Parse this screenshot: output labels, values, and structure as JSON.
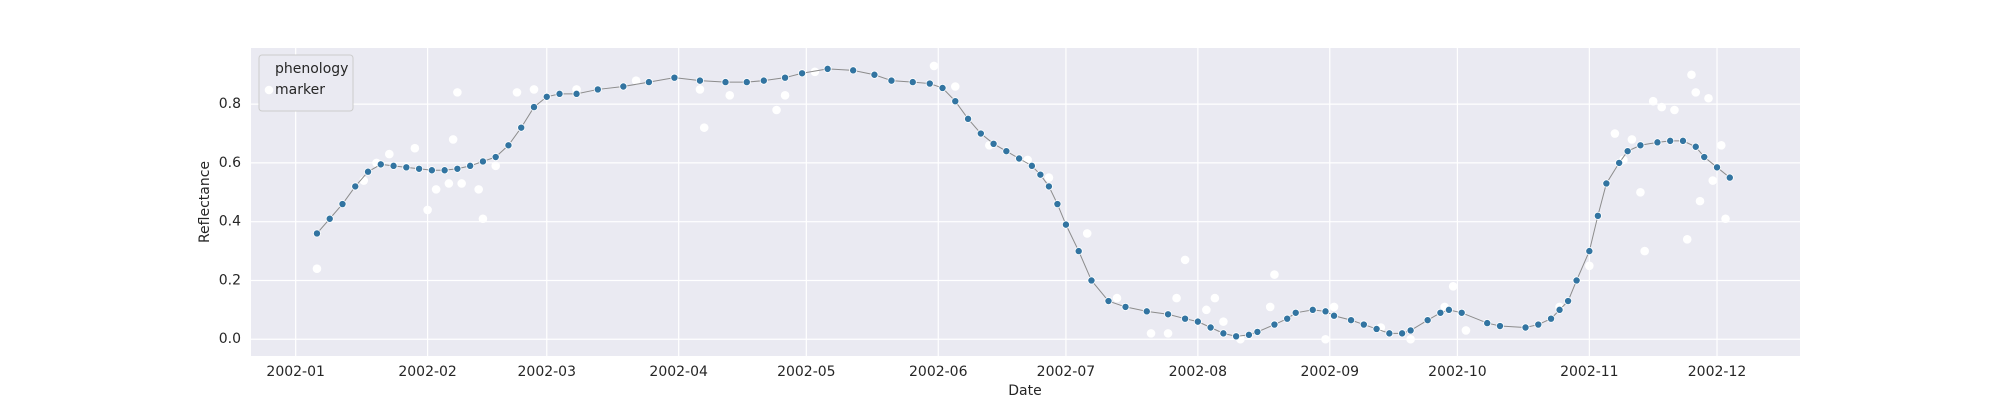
{
  "chart_data": {
    "type": "line",
    "xlabel": "Date",
    "ylabel": "Reflectance",
    "xlim": [
      -10.5,
      353.5
    ],
    "ylim": [
      -0.057,
      0.991
    ],
    "xticks": [
      {
        "value": 0,
        "label": "2002-01"
      },
      {
        "value": 31,
        "label": "2002-02"
      },
      {
        "value": 59,
        "label": "2002-03"
      },
      {
        "value": 90,
        "label": "2002-04"
      },
      {
        "value": 120,
        "label": "2002-05"
      },
      {
        "value": 151,
        "label": "2002-06"
      },
      {
        "value": 181,
        "label": "2002-07"
      },
      {
        "value": 212,
        "label": "2002-08"
      },
      {
        "value": 243,
        "label": "2002-09"
      },
      {
        "value": 273,
        "label": "2002-10"
      },
      {
        "value": 304,
        "label": "2002-11"
      },
      {
        "value": 334,
        "label": "2002-12"
      }
    ],
    "yticks": [
      {
        "value": 0,
        "label": "0.0"
      },
      0.2,
      0.4,
      0.6,
      0.8
    ],
    "grid": true,
    "legend": "upper left",
    "series": [
      {
        "name": "phenology",
        "type": "line",
        "color": "#3274a1",
        "line_color": "#8c8c8c",
        "x": [
          5,
          8,
          11,
          14,
          17,
          20,
          23,
          26,
          29,
          32,
          35,
          38,
          41,
          44,
          47,
          50,
          53,
          56,
          59,
          62,
          66,
          71,
          77,
          83,
          89,
          95,
          101,
          106,
          110,
          115,
          119,
          125,
          131,
          136,
          140,
          145,
          149,
          152,
          155,
          158,
          161,
          164,
          167,
          170,
          173,
          175,
          177,
          179,
          181,
          184,
          187,
          191,
          195,
          200,
          205,
          209,
          212,
          215,
          218,
          221,
          224,
          226,
          230,
          233,
          235,
          239,
          242,
          244,
          248,
          251,
          254,
          257,
          260,
          262,
          266,
          269,
          271,
          274,
          280,
          283,
          289,
          292,
          295,
          297,
          299,
          301,
          304,
          306,
          308,
          311,
          313,
          316,
          320,
          323,
          326,
          329,
          331,
          334,
          337
        ],
        "values": [
          0.36,
          0.41,
          0.46,
          0.52,
          0.57,
          0.595,
          0.59,
          0.585,
          0.58,
          0.575,
          0.575,
          0.58,
          0.59,
          0.605,
          0.62,
          0.66,
          0.72,
          0.79,
          0.825,
          0.835,
          0.835,
          0.85,
          0.86,
          0.875,
          0.89,
          0.88,
          0.875,
          0.875,
          0.88,
          0.89,
          0.905,
          0.92,
          0.915,
          0.9,
          0.88,
          0.875,
          0.87,
          0.855,
          0.81,
          0.75,
          0.7,
          0.665,
          0.64,
          0.615,
          0.59,
          0.56,
          0.52,
          0.46,
          0.39,
          0.3,
          0.2,
          0.13,
          0.11,
          0.095,
          0.085,
          0.07,
          0.06,
          0.04,
          0.02,
          0.01,
          0.015,
          0.025,
          0.05,
          0.07,
          0.09,
          0.1,
          0.095,
          0.08,
          0.065,
          0.05,
          0.035,
          0.02,
          0.02,
          0.03,
          0.065,
          0.09,
          0.1,
          0.09,
          0.055,
          0.045,
          0.04,
          0.05,
          0.07,
          0.1,
          0.13,
          0.2,
          0.3,
          0.42,
          0.53,
          0.6,
          0.64,
          0.66,
          0.67,
          0.675,
          0.675,
          0.655,
          0.62,
          0.585,
          0.55
        ]
      },
      {
        "name": "marker",
        "type": "scatter",
        "color": "#ffffff",
        "x": [
          5,
          16,
          19,
          22,
          28,
          31,
          33,
          36,
          37,
          38,
          39,
          43,
          44,
          47,
          52,
          56,
          66,
          80,
          95,
          96,
          102,
          113,
          115,
          122,
          150,
          155,
          163,
          172,
          177,
          186,
          193,
          201,
          205,
          207,
          209,
          214,
          216,
          218,
          222,
          229,
          230,
          242,
          244,
          255,
          262,
          270,
          272,
          275,
          297,
          304,
          310,
          312,
          314,
          316,
          317,
          319,
          321,
          324,
          327,
          328,
          329,
          330,
          332,
          333,
          335,
          336
        ],
        "values": [
          0.24,
          0.54,
          0.6,
          0.63,
          0.65,
          0.44,
          0.51,
          0.53,
          0.68,
          0.84,
          0.53,
          0.51,
          0.41,
          0.59,
          0.84,
          0.85,
          0.85,
          0.88,
          0.85,
          0.72,
          0.83,
          0.78,
          0.83,
          0.91,
          0.93,
          0.86,
          0.66,
          0.61,
          0.55,
          0.36,
          0.14,
          0.02,
          0.02,
          0.14,
          0.27,
          0.1,
          0.14,
          0.06,
          0.0,
          0.11,
          0.22,
          0.0,
          0.11,
          0.04,
          0.0,
          0.11,
          0.18,
          0.03,
          0.11,
          0.25,
          0.7,
          0.61,
          0.68,
          0.5,
          0.3,
          0.81,
          0.79,
          0.78,
          0.34,
          0.9,
          0.84,
          0.47,
          0.82,
          0.54,
          0.66,
          0.41
        ]
      }
    ]
  }
}
